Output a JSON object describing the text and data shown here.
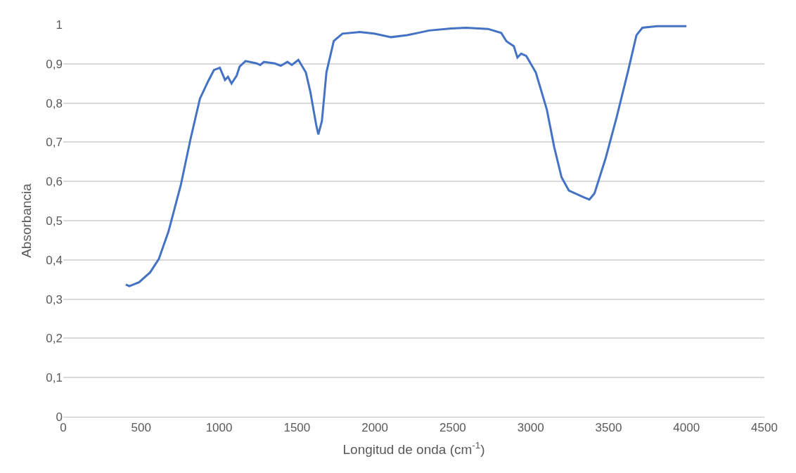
{
  "chart_data": {
    "type": "line",
    "xlabel": "Longitud de onda (cm$^{-1}$)",
    "ylabel": "Absorbancia",
    "x": [
      401,
      424,
      486,
      557,
      613,
      675,
      755,
      816,
      877,
      934,
      967,
      1005,
      1038,
      1057,
      1080,
      1113,
      1132,
      1170,
      1241,
      1264,
      1288,
      1358,
      1396,
      1439,
      1467,
      1509,
      1557,
      1585,
      1623,
      1637,
      1660,
      1689,
      1736,
      1792,
      1901,
      1995,
      2104,
      2208,
      2302,
      2349,
      2491,
      2585,
      2726,
      2811,
      2844,
      2858,
      2892,
      2915,
      2939,
      2972,
      3033,
      3104,
      3151,
      3198,
      3245,
      3340,
      3377,
      3410,
      3481,
      3552,
      3623,
      3679,
      3717,
      3811,
      4000
    ],
    "series": [
      {
        "color": "#4472c4",
        "values": [
          0.337,
          0.333,
          0.343,
          0.368,
          0.402,
          0.472,
          0.592,
          0.707,
          0.811,
          0.859,
          0.884,
          0.89,
          0.859,
          0.867,
          0.85,
          0.87,
          0.893,
          0.907,
          0.901,
          0.897,
          0.905,
          0.901,
          0.895,
          0.905,
          0.897,
          0.91,
          0.878,
          0.83,
          0.745,
          0.72,
          0.754,
          0.878,
          0.958,
          0.977,
          0.981,
          0.977,
          0.968,
          0.973,
          0.981,
          0.985,
          0.99,
          0.992,
          0.989,
          0.979,
          0.958,
          0.954,
          0.945,
          0.916,
          0.926,
          0.92,
          0.878,
          0.783,
          0.688,
          0.611,
          0.577,
          0.56,
          0.554,
          0.57,
          0.659,
          0.764,
          0.878,
          0.973,
          0.992,
          0.996,
          0.996
        ]
      }
    ],
    "xlim": [
      0,
      4500
    ],
    "xticks": [
      0,
      500,
      1000,
      1500,
      2000,
      2500,
      3000,
      3500,
      4000,
      4500
    ],
    "ylim": [
      0,
      1
    ],
    "yticks": [
      {
        "value": 0,
        "label": "0"
      },
      {
        "value": 0.1,
        "label": "0,1"
      },
      {
        "value": 0.2,
        "label": "0,2"
      },
      {
        "value": 0.3,
        "label": "0,3"
      },
      {
        "value": 0.4,
        "label": "0,4"
      },
      {
        "value": 0.5,
        "label": "0,5"
      },
      {
        "value": 0.6,
        "label": "0,6"
      },
      {
        "value": 0.7,
        "label": "0,7"
      },
      {
        "value": 0.8,
        "label": "0,8"
      },
      {
        "value": 0.9,
        "label": "0,9"
      },
      {
        "value": 1,
        "label": "1"
      }
    ],
    "grid": "y",
    "marker": "none",
    "line_style": "solid"
  }
}
